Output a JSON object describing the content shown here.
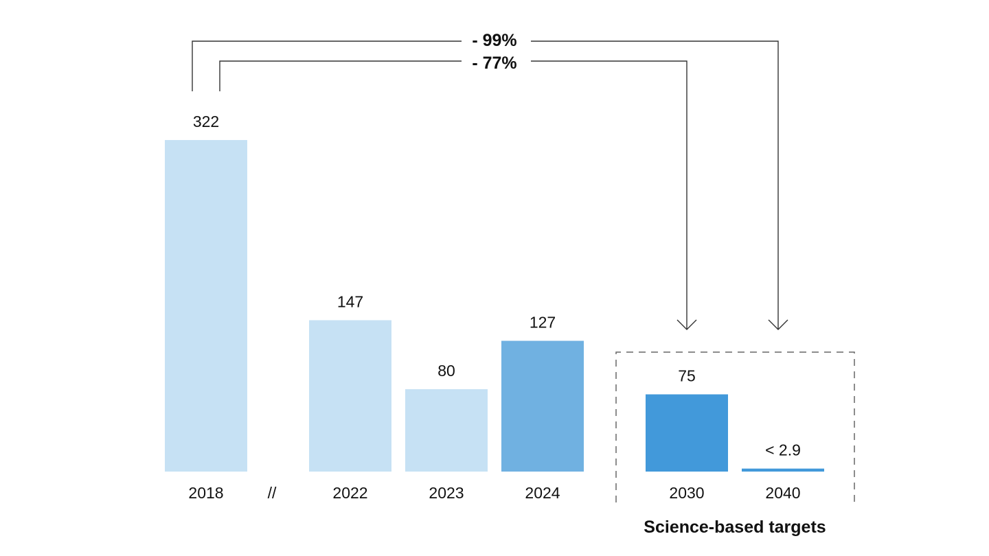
{
  "chart_data": {
    "type": "bar",
    "categories": [
      "2018",
      "2022",
      "2023",
      "2024",
      "2030",
      "2040"
    ],
    "values": [
      322,
      147,
      80,
      127,
      75,
      2.9
    ],
    "value_labels": [
      "322",
      "147",
      "80",
      "127",
      "75",
      "< 2.9"
    ],
    "axis_break_label": "//",
    "group_label": "Science-based targets",
    "reductions": [
      {
        "label": "- 99%",
        "from": "2018",
        "to": "2040"
      },
      {
        "label": "- 77%",
        "from": "2018",
        "to": "2030"
      }
    ],
    "colors": {
      "light": "#c6e1f4",
      "medium": "#70b1e1",
      "dark": "#4299da",
      "bar_colors": [
        "#c6e1f4",
        "#c6e1f4",
        "#c6e1f4",
        "#70b1e1",
        "#4299da",
        "#4299da"
      ]
    },
    "ylim": [
      0,
      322
    ],
    "grid": false,
    "legend": "none"
  }
}
